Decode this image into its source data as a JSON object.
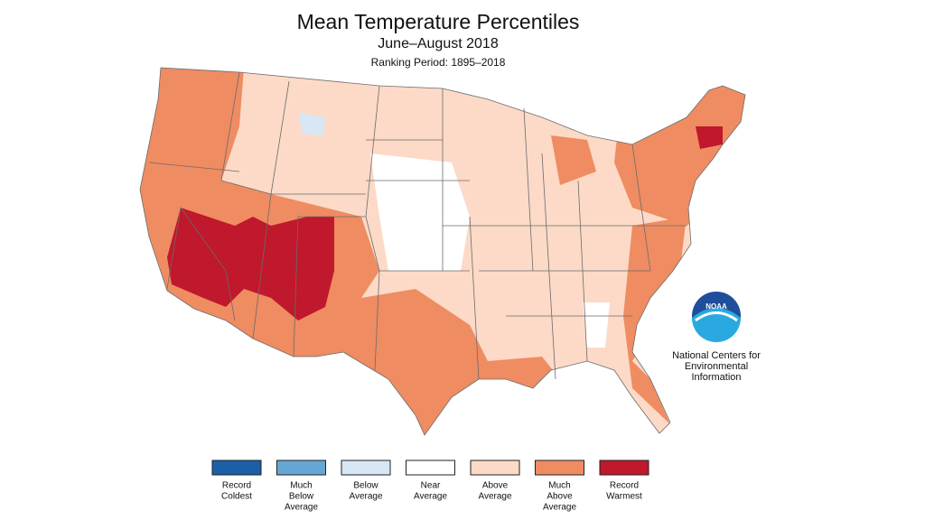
{
  "header": {
    "title": "Mean Temperature Percentiles",
    "subtitle": "June–August 2018",
    "ranking_period": "Ranking Period: 1895–2018"
  },
  "legend": [
    {
      "label_lines": [
        "Record",
        "Coldest"
      ],
      "color": "#1b5fa6"
    },
    {
      "label_lines": [
        "Much",
        "Below",
        "Average"
      ],
      "color": "#64a6d4"
    },
    {
      "label_lines": [
        "Below",
        "Average"
      ],
      "color": "#d7e7f4"
    },
    {
      "label_lines": [
        "Near",
        "Average"
      ],
      "color": "#ffffff"
    },
    {
      "label_lines": [
        "Above",
        "Average"
      ],
      "color": "#fcdac7"
    },
    {
      "label_lines": [
        "Much",
        "Above",
        "Average"
      ],
      "color": "#ef8c62"
    },
    {
      "label_lines": [
        "Record",
        "Warmest"
      ],
      "color": "#c0182c"
    }
  ],
  "logo": {
    "emblem": "NOAA",
    "caption_lines": [
      "National Centers for",
      "Environmental",
      "Information"
    ]
  }
}
